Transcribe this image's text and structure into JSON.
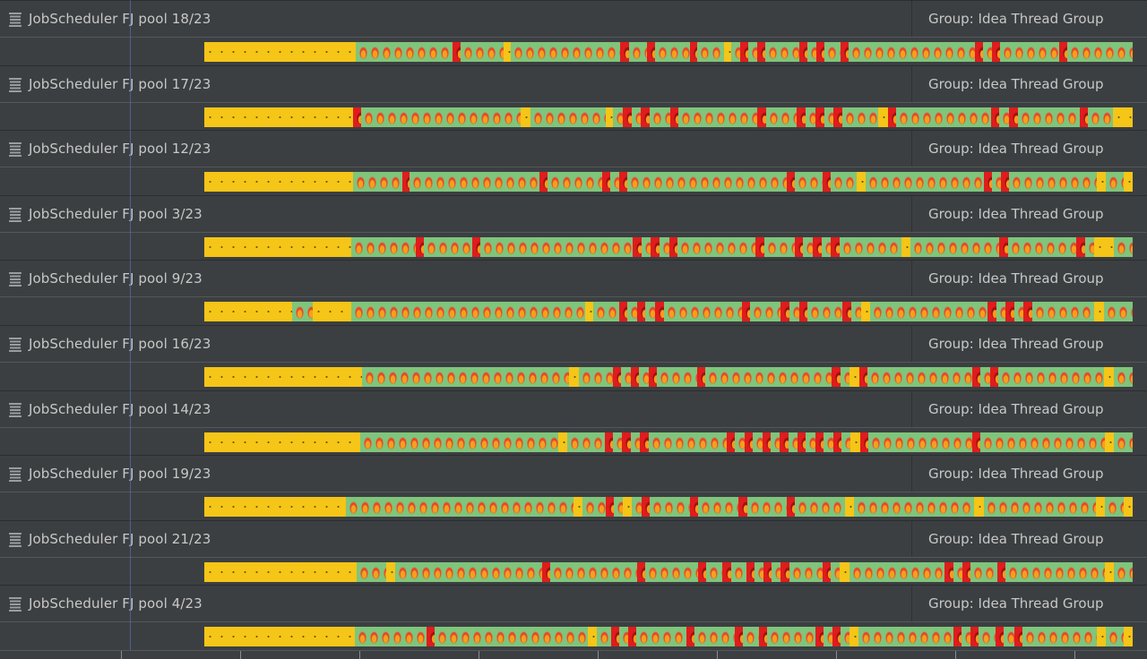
{
  "group_prefix": "Group:",
  "threads": [
    {
      "name": "JobScheduler FJ pool 18/23",
      "group": "Idea Thread Group",
      "segments": [
        [
          "wait",
          0.166
        ],
        [
          "run",
          0.106
        ],
        [
          "block",
          0.009
        ],
        [
          "run",
          0.047
        ],
        [
          "wait",
          0.008
        ],
        [
          "run",
          0.12
        ],
        [
          "block",
          0.009
        ],
        [
          "run",
          0.02
        ],
        [
          "block",
          0.009
        ],
        [
          "run",
          0.038
        ],
        [
          "block",
          0.008
        ],
        [
          "run",
          0.029
        ],
        [
          "wait",
          0.008
        ],
        [
          "run",
          0.01
        ],
        [
          "block",
          0.009
        ],
        [
          "run",
          0.01
        ],
        [
          "block",
          0.009
        ],
        [
          "run",
          0.037
        ],
        [
          "block",
          0.009
        ],
        [
          "run",
          0.01
        ],
        [
          "block",
          0.009
        ],
        [
          "run",
          0.017
        ],
        [
          "block",
          0.009
        ],
        [
          "run",
          0.138
        ],
        [
          "block",
          0.009
        ],
        [
          "run",
          0.01
        ],
        [
          "block",
          0.009
        ],
        [
          "run",
          0.065
        ],
        [
          "block",
          0.009
        ],
        [
          "run",
          0.071
        ]
      ]
    },
    {
      "name": "JobScheduler FJ pool 17/23",
      "group": "Idea Thread Group",
      "segments": [
        [
          "wait",
          0.154
        ],
        [
          "block",
          0.009
        ],
        [
          "run",
          0.165
        ],
        [
          "wait",
          0.01
        ],
        [
          "run",
          0.078
        ],
        [
          "wait",
          0.008
        ],
        [
          "run",
          0.01
        ],
        [
          "block",
          0.009
        ],
        [
          "run",
          0.01
        ],
        [
          "block",
          0.009
        ],
        [
          "run",
          0.021
        ],
        [
          "block",
          0.009
        ],
        [
          "run",
          0.082
        ],
        [
          "block",
          0.009
        ],
        [
          "run",
          0.032
        ],
        [
          "block",
          0.009
        ],
        [
          "run",
          0.01
        ],
        [
          "block",
          0.009
        ],
        [
          "run",
          0.01
        ],
        [
          "block",
          0.009
        ],
        [
          "run",
          0.037
        ],
        [
          "wait",
          0.01
        ],
        [
          "block",
          0.009
        ],
        [
          "run",
          0.098
        ],
        [
          "block",
          0.009
        ],
        [
          "run",
          0.01
        ],
        [
          "block",
          0.009
        ],
        [
          "run",
          0.064
        ],
        [
          "block",
          0.009
        ],
        [
          "run",
          0.026
        ],
        [
          "wait",
          0.02
        ]
      ]
    },
    {
      "name": "JobScheduler FJ pool 12/23",
      "group": "Idea Thread Group",
      "segments": [
        [
          "wait",
          0.167
        ],
        [
          "run",
          0.055
        ],
        [
          "block",
          0.009
        ],
        [
          "run",
          0.146
        ],
        [
          "block",
          0.009
        ],
        [
          "run",
          0.061
        ],
        [
          "block",
          0.009
        ],
        [
          "run",
          0.01
        ],
        [
          "block",
          0.009
        ],
        [
          "run",
          0.179
        ],
        [
          "block",
          0.009
        ],
        [
          "run",
          0.032
        ],
        [
          "block",
          0.009
        ],
        [
          "run",
          0.029
        ],
        [
          "wait",
          0.01
        ],
        [
          "run",
          0.133
        ],
        [
          "block",
          0.009
        ],
        [
          "run",
          0.01
        ],
        [
          "block",
          0.009
        ],
        [
          "run",
          0.099
        ],
        [
          "wait",
          0.01
        ],
        [
          "run",
          0.02
        ],
        [
          "wait",
          0.01
        ]
      ]
    },
    {
      "name": "JobScheduler FJ pool 3/23",
      "group": "Idea Thread Group",
      "segments": [
        [
          "wait",
          0.154
        ],
        [
          "run",
          0.068
        ],
        [
          "block",
          0.009
        ],
        [
          "run",
          0.05
        ],
        [
          "block",
          0.009
        ],
        [
          "run",
          0.16
        ],
        [
          "block",
          0.009
        ],
        [
          "run",
          0.01
        ],
        [
          "block",
          0.009
        ],
        [
          "run",
          0.01
        ],
        [
          "block",
          0.009
        ],
        [
          "run",
          0.082
        ],
        [
          "block",
          0.009
        ],
        [
          "run",
          0.032
        ],
        [
          "block",
          0.009
        ],
        [
          "run",
          0.01
        ],
        [
          "block",
          0.009
        ],
        [
          "run",
          0.01
        ],
        [
          "block",
          0.009
        ],
        [
          "run",
          0.065
        ],
        [
          "wait",
          0.01
        ],
        [
          "run",
          0.093
        ],
        [
          "block",
          0.009
        ],
        [
          "run",
          0.072
        ],
        [
          "block",
          0.009
        ],
        [
          "run",
          0.01
        ],
        [
          "wait",
          0.02
        ],
        [
          "run",
          0.02
        ]
      ]
    },
    {
      "name": "JobScheduler FJ pool 9/23",
      "group": "Idea Thread Group",
      "segments": [
        [
          "wait",
          0.092
        ],
        [
          "run",
          0.022
        ],
        [
          "wait",
          0.04
        ],
        [
          "run",
          0.246
        ],
        [
          "wait",
          0.008
        ],
        [
          "run",
          0.027
        ],
        [
          "block",
          0.009
        ],
        [
          "run",
          0.01
        ],
        [
          "block",
          0.009
        ],
        [
          "run",
          0.01
        ],
        [
          "block",
          0.009
        ],
        [
          "run",
          0.082
        ],
        [
          "block",
          0.009
        ],
        [
          "run",
          0.032
        ],
        [
          "block",
          0.009
        ],
        [
          "run",
          0.01
        ],
        [
          "block",
          0.009
        ],
        [
          "run",
          0.037
        ],
        [
          "block",
          0.009
        ],
        [
          "run",
          0.01
        ],
        [
          "wait",
          0.01
        ],
        [
          "run",
          0.123
        ],
        [
          "block",
          0.009
        ],
        [
          "run",
          0.01
        ],
        [
          "block",
          0.009
        ],
        [
          "run",
          0.01
        ],
        [
          "block",
          0.009
        ],
        [
          "run",
          0.065
        ],
        [
          "wait",
          0.01
        ],
        [
          "run",
          0.03
        ]
      ]
    },
    {
      "name": "JobScheduler FJ pool 16/23",
      "group": "Idea Thread Group",
      "segments": [
        [
          "wait",
          0.167
        ],
        [
          "run",
          0.22
        ],
        [
          "wait",
          0.01
        ],
        [
          "run",
          0.036
        ],
        [
          "block",
          0.009
        ],
        [
          "run",
          0.01
        ],
        [
          "block",
          0.009
        ],
        [
          "run",
          0.01
        ],
        [
          "block",
          0.009
        ],
        [
          "run",
          0.042
        ],
        [
          "block",
          0.009
        ],
        [
          "run",
          0.134
        ],
        [
          "block",
          0.009
        ],
        [
          "run",
          0.01
        ],
        [
          "wait",
          0.01
        ],
        [
          "block",
          0.009
        ],
        [
          "run",
          0.111
        ],
        [
          "block",
          0.009
        ],
        [
          "run",
          0.01
        ],
        [
          "block",
          0.009
        ],
        [
          "run",
          0.112
        ],
        [
          "wait",
          0.01
        ],
        [
          "run",
          0.02
        ]
      ]
    },
    {
      "name": "JobScheduler FJ pool 14/23",
      "group": "Idea Thread Group",
      "segments": [
        [
          "wait",
          0.167
        ],
        [
          "run",
          0.212
        ],
        [
          "wait",
          0.01
        ],
        [
          "run",
          0.04
        ],
        [
          "block",
          0.009
        ],
        [
          "run",
          0.01
        ],
        [
          "block",
          0.009
        ],
        [
          "run",
          0.01
        ],
        [
          "block",
          0.009
        ],
        [
          "run",
          0.084
        ],
        [
          "block",
          0.009
        ],
        [
          "run",
          0.01
        ],
        [
          "block",
          0.009
        ],
        [
          "run",
          0.01
        ],
        [
          "block",
          0.009
        ],
        [
          "run",
          0.01
        ],
        [
          "block",
          0.009
        ],
        [
          "run",
          0.01
        ],
        [
          "block",
          0.009
        ],
        [
          "run",
          0.01
        ],
        [
          "block",
          0.009
        ],
        [
          "run",
          0.01
        ],
        [
          "block",
          0.009
        ],
        [
          "run",
          0.01
        ],
        [
          "wait",
          0.01
        ],
        [
          "block",
          0.009
        ],
        [
          "run",
          0.111
        ],
        [
          "block",
          0.009
        ],
        [
          "run",
          0.133
        ],
        [
          "wait",
          0.01
        ],
        [
          "run",
          0.02
        ]
      ]
    },
    {
      "name": "JobScheduler FJ pool 19/23",
      "group": "Idea Thread Group",
      "segments": [
        [
          "wait",
          0.154
        ],
        [
          "run",
          0.247
        ],
        [
          "wait",
          0.01
        ],
        [
          "run",
          0.025
        ],
        [
          "block",
          0.009
        ],
        [
          "run",
          0.01
        ],
        [
          "wait",
          0.01
        ],
        [
          "run",
          0.01
        ],
        [
          "block",
          0.009
        ],
        [
          "run",
          0.044
        ],
        [
          "block",
          0.009
        ],
        [
          "run",
          0.044
        ],
        [
          "block",
          0.009
        ],
        [
          "run",
          0.043
        ],
        [
          "block",
          0.009
        ],
        [
          "run",
          0.054
        ],
        [
          "wait",
          0.01
        ],
        [
          "run",
          0.131
        ],
        [
          "wait",
          0.01
        ],
        [
          "run",
          0.122
        ],
        [
          "wait",
          0.01
        ],
        [
          "run",
          0.02
        ],
        [
          "wait",
          0.01
        ]
      ]
    },
    {
      "name": "JobScheduler FJ pool 21/23",
      "group": "Idea Thread Group",
      "segments": [
        [
          "wait",
          0.167
        ],
        [
          "run",
          0.033
        ],
        [
          "wait",
          0.01
        ],
        [
          "run",
          0.161
        ],
        [
          "block",
          0.009
        ],
        [
          "run",
          0.095
        ],
        [
          "block",
          0.009
        ],
        [
          "run",
          0.058
        ],
        [
          "block",
          0.009
        ],
        [
          "run",
          0.018
        ],
        [
          "block",
          0.009
        ],
        [
          "run",
          0.017
        ],
        [
          "block",
          0.009
        ],
        [
          "run",
          0.01
        ],
        [
          "block",
          0.009
        ],
        [
          "run",
          0.01
        ],
        [
          "block",
          0.009
        ],
        [
          "run",
          0.037
        ],
        [
          "block",
          0.009
        ],
        [
          "run",
          0.01
        ],
        [
          "wait",
          0.01
        ],
        [
          "run",
          0.105
        ],
        [
          "block",
          0.009
        ],
        [
          "run",
          0.01
        ],
        [
          "block",
          0.009
        ],
        [
          "run",
          0.03
        ],
        [
          "block",
          0.009
        ],
        [
          "run",
          0.109
        ],
        [
          "wait",
          0.01
        ],
        [
          "run",
          0.02
        ]
      ]
    },
    {
      "name": "JobScheduler FJ pool 4/23",
      "group": "Idea Thread Group",
      "segments": [
        [
          "wait",
          0.167
        ],
        [
          "run",
          0.08
        ],
        [
          "block",
          0.009
        ],
        [
          "run",
          0.17
        ],
        [
          "wait",
          0.01
        ],
        [
          "run",
          0.016
        ],
        [
          "block",
          0.009
        ],
        [
          "run",
          0.01
        ],
        [
          "block",
          0.009
        ],
        [
          "run",
          0.055
        ],
        [
          "block",
          0.009
        ],
        [
          "run",
          0.045
        ],
        [
          "block",
          0.009
        ],
        [
          "run",
          0.018
        ],
        [
          "block",
          0.009
        ],
        [
          "run",
          0.054
        ],
        [
          "block",
          0.009
        ],
        [
          "run",
          0.01
        ],
        [
          "block",
          0.009
        ],
        [
          "run",
          0.01
        ],
        [
          "wait",
          0.01
        ],
        [
          "run",
          0.105
        ],
        [
          "block",
          0.009
        ],
        [
          "run",
          0.01
        ],
        [
          "block",
          0.009
        ],
        [
          "run",
          0.019
        ],
        [
          "block",
          0.009
        ],
        [
          "run",
          0.012
        ],
        [
          "block",
          0.009
        ],
        [
          "run",
          0.082
        ],
        [
          "wait",
          0.01
        ],
        [
          "run",
          0.02
        ],
        [
          "wait",
          0.01
        ]
      ]
    }
  ]
}
